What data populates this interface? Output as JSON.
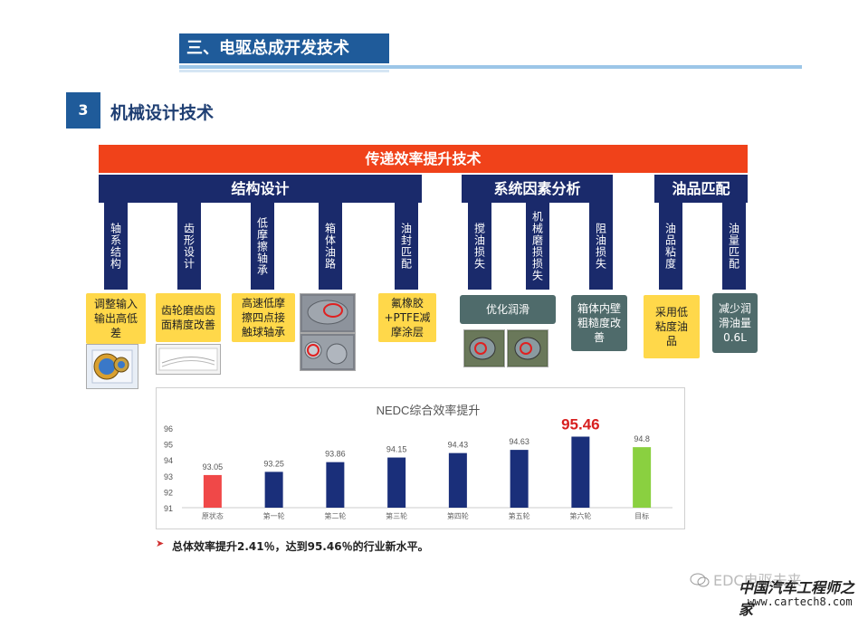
{
  "header": {
    "title": "三、电驱总成开发技术"
  },
  "section": {
    "number": "3",
    "title": "机械设计技术"
  },
  "banner": "传递效率提升技术",
  "categories": {
    "structure": "结构设计",
    "system": "系统因素分析",
    "oil": "油品匹配"
  },
  "sub_items": {
    "s1": "轴系结构",
    "s2": "齿形设计",
    "s3": "低摩擦轴承",
    "s4": "箱体油路",
    "s5": "油封匹配",
    "s6": "搅油损失",
    "s7": "机械磨损损失",
    "s8": "阻油损失",
    "s9": "油品粘度",
    "s10": "油量匹配"
  },
  "solutions": {
    "r1": "调整输入输出高低差",
    "r2": "齿轮磨齿齿面精度改善",
    "r3": "高速低摩擦四点接触球轴承",
    "r4": "氟橡胶+PTFE减摩涂层",
    "r5": "优化润滑",
    "r6": "箱体内壁粗糙度改善",
    "r7": "采用低粘度油品",
    "r8": "减少润滑油量0.6L"
  },
  "chart_data": {
    "type": "bar",
    "title": "NEDC综合效率提升",
    "categories": [
      "原状态",
      "第一轮",
      "第二轮",
      "第三轮",
      "第四轮",
      "第五轮",
      "第六轮",
      "目标"
    ],
    "values": [
      93.05,
      93.25,
      93.86,
      94.15,
      94.43,
      94.63,
      95.46,
      94.8
    ],
    "value_labels": [
      "93.05",
      "93.25",
      "93.86",
      "94.15",
      "94.43",
      "94.63",
      "95.46",
      "94.8"
    ],
    "ylim": [
      91,
      96
    ],
    "yticks": [
      "91",
      "92",
      "93",
      "94",
      "95",
      "96"
    ],
    "colors": [
      "#f04848",
      "#1a2f7a",
      "#1a2f7a",
      "#1a2f7a",
      "#1a2f7a",
      "#1a2f7a",
      "#1a2f7a",
      "#8ad040"
    ],
    "highlight_color": "#d82020",
    "grid": false
  },
  "note": "总体效率提升2.41％，达到95.46％的行业新水平。",
  "watermark": {
    "line1": "EDC电驱未来",
    "line2": "中国汽车工程师之家",
    "line3": "www.cartech8.com"
  }
}
